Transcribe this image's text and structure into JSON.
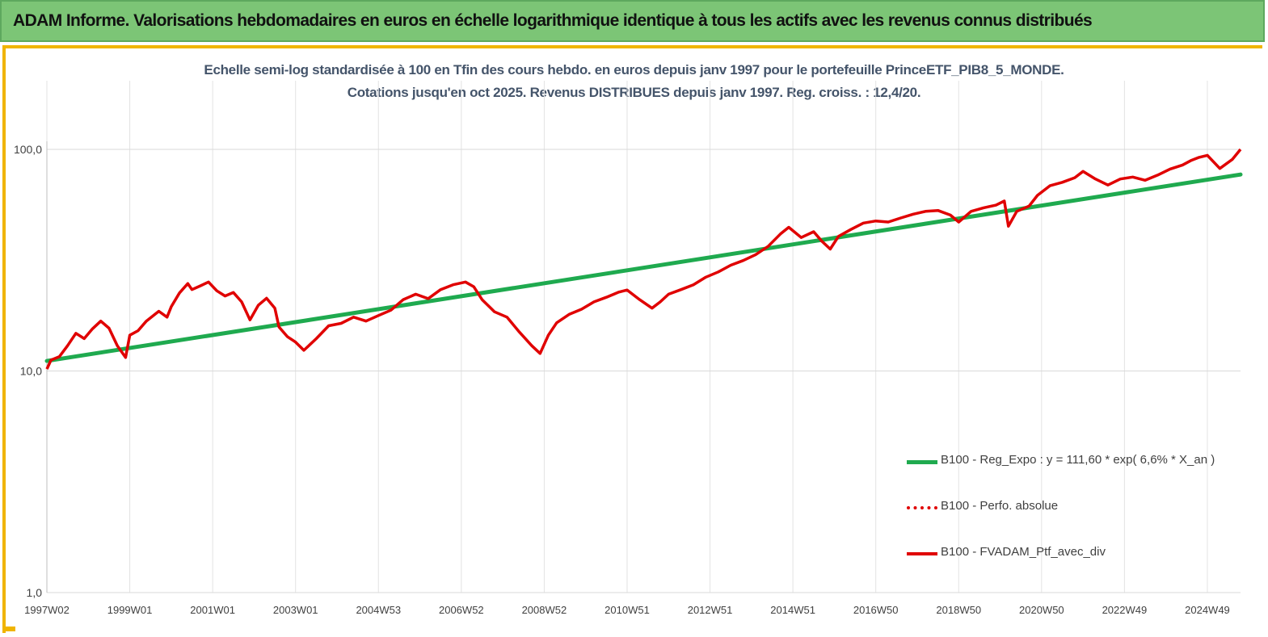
{
  "header": {
    "title": "ADAM Informe. Valorisations hebdomadaires en euros en échelle logarithmique identique à tous les actifs avec les revenus connus distribués"
  },
  "colors": {
    "banner": "#7cc576",
    "frame_accent": "#f0b400",
    "regression": "#1faa4f",
    "portfolio": "#e00000",
    "subtitle": "#44546a"
  },
  "chart_data": {
    "type": "line",
    "title": "Echelle semi-log standardisée à 100 en Tfin des cours hebdo.  en euros depuis janv 1997 pour le portefeuille PrinceETF_PIB8_5_MONDE.",
    "subtitle": "Cotations jusqu'en oct 2025. Revenus DISTRIBUES depuis janv 1997. Reg. croiss. : 12,4/20.",
    "y_scale": "log",
    "ylim": [
      1,
      100
    ],
    "y_ticks": [
      "1,0",
      "10,0",
      "100,0"
    ],
    "y_tick_values": [
      1,
      10,
      100
    ],
    "xlim": [
      1997.0,
      2025.8
    ],
    "x_tick_labels": [
      "1997W02",
      "1999W01",
      "2001W01",
      "2003W01",
      "2004W53",
      "2006W52",
      "2008W52",
      "2010W51",
      "2012W51",
      "2014W51",
      "2016W50",
      "2018W50",
      "2020W50",
      "2022W49",
      "2024W49"
    ],
    "x_tick_values": [
      1997.0,
      1999.0,
      2001.0,
      2003.0,
      2005.0,
      2007.0,
      2009.0,
      2011.0,
      2013.0,
      2015.0,
      2017.0,
      2019.0,
      2021.0,
      2023.0,
      2025.0
    ],
    "grid": true,
    "legend_position": "bottom-right",
    "series": [
      {
        "name": "B100 - Reg_Expo : y = 111,60 * exp( 6,6% *  X_an )",
        "style": "solid-thick",
        "color": "#1faa4f",
        "x": [
          1997.0,
          2025.8
        ],
        "y": [
          11.1,
          77
        ]
      },
      {
        "name": "B100 - Perfo. absolue",
        "style": "dotted",
        "color": "#e00000",
        "x": [],
        "y": []
      },
      {
        "name": "B100 - FVADAM_Ptf_avec_div",
        "style": "solid",
        "color": "#e00000",
        "x": [
          1997.0,
          1997.1,
          1997.3,
          1997.5,
          1997.7,
          1997.9,
          1998.1,
          1998.3,
          1998.5,
          1998.7,
          1998.9,
          1999.0,
          1999.2,
          1999.4,
          1999.7,
          1999.9,
          2000.0,
          2000.2,
          2000.4,
          2000.5,
          2000.7,
          2000.9,
          2001.1,
          2001.3,
          2001.5,
          2001.7,
          2001.9,
          2002.1,
          2002.3,
          2002.5,
          2002.6,
          2002.8,
          2003.0,
          2003.2,
          2003.5,
          2003.8,
          2004.1,
          2004.4,
          2004.7,
          2005.0,
          2005.3,
          2005.6,
          2005.9,
          2006.2,
          2006.5,
          2006.8,
          2007.1,
          2007.3,
          2007.5,
          2007.8,
          2008.1,
          2008.4,
          2008.7,
          2008.9,
          2009.1,
          2009.3,
          2009.6,
          2009.9,
          2010.2,
          2010.5,
          2010.8,
          2011.0,
          2011.3,
          2011.6,
          2011.8,
          2012.0,
          2012.3,
          2012.6,
          2012.9,
          2013.2,
          2013.5,
          2013.8,
          2014.1,
          2014.4,
          2014.7,
          2014.9,
          2015.2,
          2015.5,
          2015.7,
          2015.9,
          2016.1,
          2016.4,
          2016.7,
          2017.0,
          2017.3,
          2017.6,
          2017.9,
          2018.2,
          2018.5,
          2018.8,
          2019.0,
          2019.3,
          2019.6,
          2019.9,
          2020.1,
          2020.2,
          2020.4,
          2020.7,
          2020.9,
          2021.2,
          2021.5,
          2021.8,
          2022.0,
          2022.3,
          2022.6,
          2022.9,
          2023.2,
          2023.5,
          2023.8,
          2024.1,
          2024.4,
          2024.6,
          2024.8,
          2025.0,
          2025.3,
          2025.6,
          2025.8
        ],
        "y": [
          10.2,
          11.2,
          11.6,
          13.0,
          14.8,
          14.0,
          15.5,
          16.8,
          15.6,
          13.0,
          11.5,
          14.5,
          15.2,
          16.8,
          18.6,
          17.5,
          19.5,
          22.5,
          24.8,
          23.3,
          24.2,
          25.2,
          23.0,
          21.8,
          22.6,
          20.5,
          17.0,
          19.8,
          21.3,
          19.2,
          15.8,
          14.3,
          13.5,
          12.4,
          14.0,
          16.0,
          16.4,
          17.5,
          16.8,
          17.8,
          18.8,
          21.0,
          22.2,
          21.2,
          23.3,
          24.5,
          25.2,
          24.0,
          21.0,
          18.5,
          17.5,
          15.0,
          13.0,
          12.0,
          14.5,
          16.5,
          18.0,
          19.0,
          20.5,
          21.5,
          22.7,
          23.2,
          21.0,
          19.2,
          20.5,
          22.2,
          23.3,
          24.5,
          26.5,
          28.0,
          30.0,
          31.5,
          33.5,
          36.5,
          41.5,
          44.5,
          40.0,
          42.5,
          38.5,
          35.5,
          40.5,
          43.5,
          46.5,
          47.5,
          47.0,
          49.0,
          51.0,
          52.5,
          53.0,
          50.5,
          47.0,
          52.5,
          54.5,
          56.0,
          58.5,
          45.0,
          52.5,
          55.5,
          62.0,
          68.5,
          71.0,
          74.5,
          79.5,
          73.5,
          69.0,
          73.5,
          75.0,
          72.5,
          76.5,
          81.5,
          85.0,
          89.0,
          92.0,
          94.0,
          82.0,
          90.0,
          100.0
        ]
      }
    ]
  }
}
